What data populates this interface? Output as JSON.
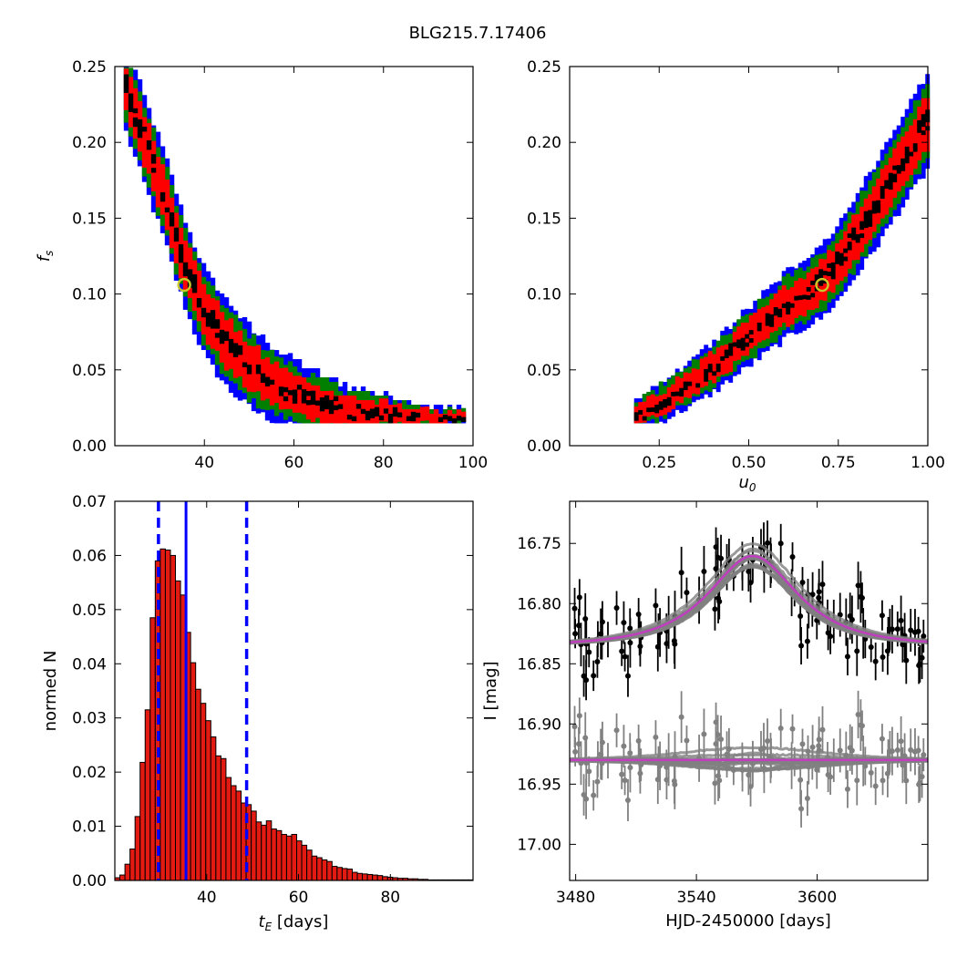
{
  "title": "BLG215.7.17406",
  "colors": {
    "sigma1": "#000000",
    "sigma2": "#ff0000",
    "sigma3": "#007f00",
    "sigma4": "#0000ff",
    "best_fit_marker": "#c8c82a",
    "hist_bar": "#e31a12",
    "hist_line": "#0000ff",
    "model_line": "#bf3fbf",
    "model_band": "#808080",
    "data_black": "#000000",
    "data_gray": "#808080"
  },
  "chart_data": [
    {
      "id": "tE-fs",
      "type": "heatmap",
      "xlabel": "",
      "ylabel": "f_s",
      "xlim": [
        20,
        100
      ],
      "ylim": [
        0,
        0.25
      ],
      "xticks": [
        "40",
        "60",
        "80",
        "100"
      ],
      "xtick_values": [
        40,
        60,
        80,
        100
      ],
      "yticks": [
        "0.00",
        "0.05",
        "0.10",
        "0.15",
        "0.20",
        "0.25"
      ],
      "ytick_values": [
        0,
        0.05,
        0.1,
        0.15,
        0.2,
        0.25
      ],
      "ridge": [
        [
          22,
          0.235
        ],
        [
          25,
          0.21
        ],
        [
          28,
          0.185
        ],
        [
          31,
          0.16
        ],
        [
          34,
          0.13
        ],
        [
          37,
          0.105
        ],
        [
          40,
          0.085
        ],
        [
          45,
          0.065
        ],
        [
          50,
          0.05
        ],
        [
          55,
          0.04
        ],
        [
          60,
          0.033
        ],
        [
          65,
          0.027
        ],
        [
          70,
          0.023
        ],
        [
          80,
          0.02
        ],
        [
          90,
          0.018
        ],
        [
          98,
          0.018
        ]
      ],
      "best_fit": [
        35.5,
        0.106
      ]
    },
    {
      "id": "u0-fs",
      "type": "heatmap",
      "xlabel": "u_0",
      "ylabel": "",
      "xlim": [
        0,
        1
      ],
      "ylim": [
        0,
        0.25
      ],
      "xticks": [
        "0.25",
        "0.50",
        "0.75",
        "1.00"
      ],
      "xtick_values": [
        0.25,
        0.5,
        0.75,
        1.0
      ],
      "yticks": [
        "0.00",
        "0.05",
        "0.10",
        "0.15",
        "0.20",
        "0.25"
      ],
      "ytick_values": [
        0,
        0.05,
        0.1,
        0.15,
        0.2,
        0.25
      ],
      "ridge": [
        [
          0.18,
          0.018
        ],
        [
          0.25,
          0.028
        ],
        [
          0.3,
          0.036
        ],
        [
          0.35,
          0.043
        ],
        [
          0.4,
          0.052
        ],
        [
          0.45,
          0.062
        ],
        [
          0.5,
          0.072
        ],
        [
          0.55,
          0.082
        ],
        [
          0.6,
          0.092
        ],
        [
          0.65,
          0.1
        ],
        [
          0.7,
          0.108
        ],
        [
          0.75,
          0.122
        ],
        [
          0.8,
          0.14
        ],
        [
          0.85,
          0.158
        ],
        [
          0.9,
          0.178
        ],
        [
          0.95,
          0.197
        ],
        [
          1.0,
          0.215
        ]
      ],
      "best_fit": [
        0.705,
        0.106
      ]
    },
    {
      "id": "tE-hist",
      "type": "bar",
      "xlabel": "t_E [days]",
      "ylabel": "normed N",
      "xlim": [
        20,
        98
      ],
      "ylim": [
        0,
        0.07
      ],
      "xticks": [
        "40",
        "60",
        "80"
      ],
      "xtick_values": [
        40,
        60,
        80
      ],
      "yticks": [
        "0.00",
        "0.01",
        "0.02",
        "0.03",
        "0.04",
        "0.05",
        "0.06",
        "0.07"
      ],
      "ytick_values": [
        0,
        0.01,
        0.02,
        0.03,
        0.04,
        0.05,
        0.06,
        0.07
      ],
      "bin_start": 20,
      "bin_width": 1.1,
      "values": [
        0.0005,
        0.001,
        0.003,
        0.0058,
        0.0118,
        0.0218,
        0.0315,
        0.0485,
        0.059,
        0.0612,
        0.061,
        0.06,
        0.0553,
        0.0527,
        0.0458,
        0.0402,
        0.0353,
        0.0327,
        0.0295,
        0.0265,
        0.023,
        0.0225,
        0.019,
        0.0175,
        0.0165,
        0.0143,
        0.014,
        0.0128,
        0.0108,
        0.0102,
        0.011,
        0.0095,
        0.0092,
        0.0085,
        0.0082,
        0.0085,
        0.0073,
        0.0065,
        0.0056,
        0.0045,
        0.0042,
        0.0038,
        0.0035,
        0.0026,
        0.0024,
        0.0022,
        0.0021,
        0.0015,
        0.0013,
        0.0012,
        0.0011,
        0.001,
        0.0009,
        0.0007,
        0.0006,
        0.0005,
        0.0004,
        0.0004,
        0.0003,
        0.0003,
        0.0002,
        0.0002,
        0.0001,
        0.0001,
        0.0001,
        0.0001,
        0.0001,
        0.0001,
        0.0001,
        0.0001,
        0.0001
      ],
      "median": 35.5,
      "lower": 29.5,
      "upper": 48.7
    },
    {
      "id": "lightcurve",
      "type": "scatter",
      "xlabel": "HJD-2450000 [days]",
      "ylabel": "I [mag]",
      "xlim": [
        3477,
        3655
      ],
      "ylim": [
        17.03,
        16.715
      ],
      "xticks": [
        "3480",
        "3540",
        "3600"
      ],
      "xtick_values": [
        3480,
        3540,
        3600
      ],
      "yticks": [
        "16.75",
        "16.80",
        "16.85",
        "16.90",
        "16.95",
        "17.00"
      ],
      "ytick_values": [
        16.75,
        16.8,
        16.85,
        16.9,
        16.95,
        17.0
      ],
      "model": {
        "t0": 3568,
        "tE": 35.5,
        "u0": 0.705,
        "fs": 0.106,
        "Ibase": 16.835
      },
      "residual_offset": 16.93
    }
  ]
}
